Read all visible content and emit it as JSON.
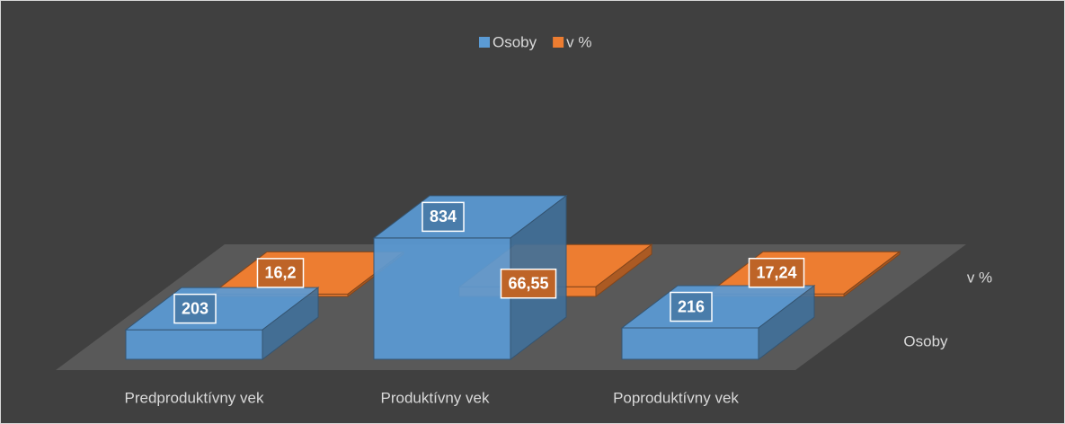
{
  "chart_data": {
    "type": "bar3d",
    "categories": [
      "Predproduktívny vek",
      "Produktívny vek",
      "Poproduktívny vek"
    ],
    "series": [
      {
        "name": "Osoby",
        "color": "#5b9bd5",
        "values": [
          203,
          834,
          216
        ]
      },
      {
        "name": "v %",
        "color": "#ed7d31",
        "values": [
          16.2,
          66.55,
          17.24
        ],
        "value_labels": [
          "16,2",
          "66,55",
          "17,24"
        ]
      }
    ],
    "legend": "top"
  }
}
